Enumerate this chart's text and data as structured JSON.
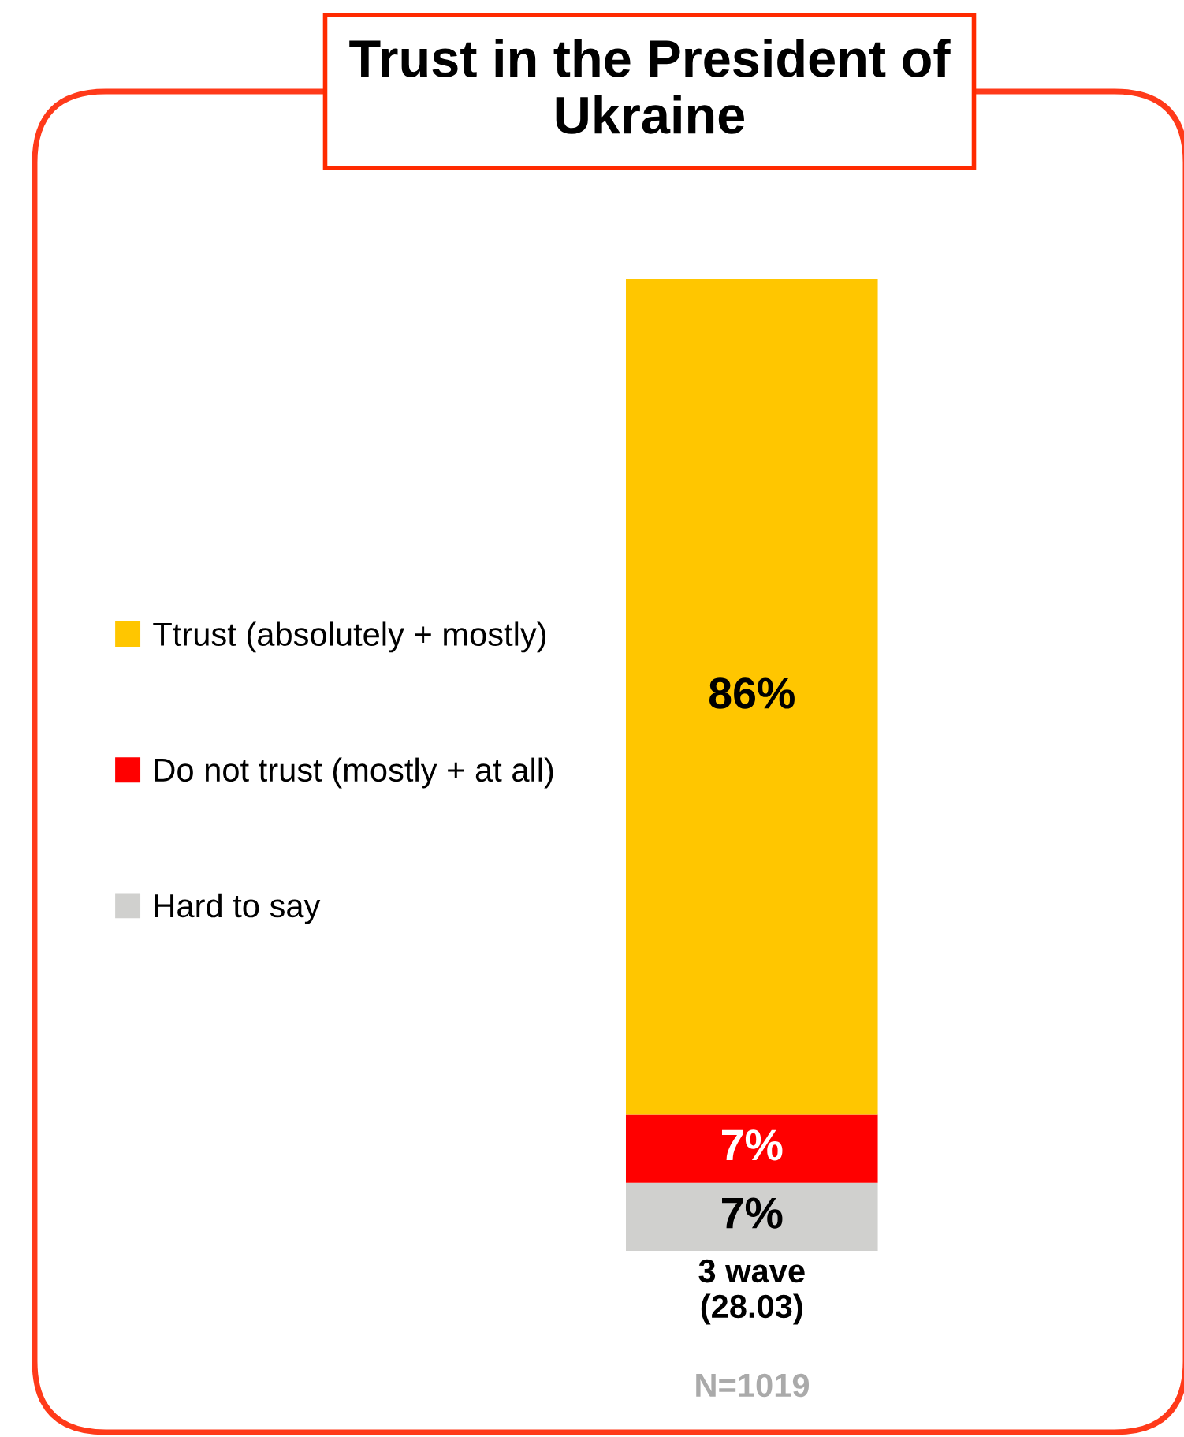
{
  "chart_data": {
    "type": "bar",
    "title": "Trust in the President of\nUkraine",
    "stacked": true,
    "categories": [
      "3 wave\n(28.03)"
    ],
    "series": [
      {
        "name": "Hard to say",
        "color": "#d0d0ce",
        "values": [
          7
        ],
        "value_labels": [
          "7%"
        ]
      },
      {
        "name": "Do not trust (mostly + at all)",
        "color": "#ff0000",
        "values": [
          7
        ],
        "value_labels": [
          "7%"
        ]
      },
      {
        "name": "Ttrust (absolutely + mostly)",
        "color": "#ffc600",
        "values": [
          86
        ],
        "value_labels": [
          "86%"
        ]
      }
    ],
    "ylim": [
      0,
      100
    ],
    "legend": "left",
    "grid": false,
    "annotations": [
      "N=1019"
    ]
  }
}
